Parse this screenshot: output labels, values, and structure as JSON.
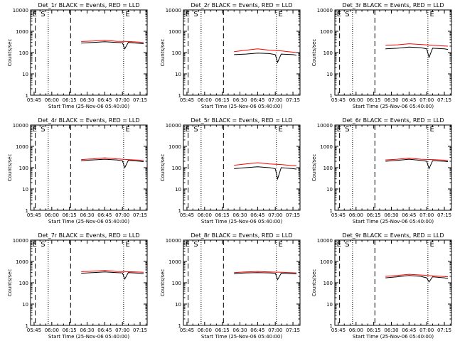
{
  "chart_data": [
    {
      "type": "line",
      "title": "Det_1r  BLACK = Events, RED = LLD",
      "xlabel": "Start Time (25-Nov-06 05:40:00)",
      "ylabel": "Counts/sec",
      "x_ticks": [
        "05:45",
        "06:00",
        "06:15",
        "06:30",
        "06:45",
        "07:00",
        "07:15"
      ],
      "y_ticks": [
        "1",
        "10",
        "100",
        "1000",
        "10000"
      ],
      "ylim": [
        1,
        10000
      ],
      "yscale": "log",
      "markers": [
        "E",
        "S",
        "E"
      ],
      "series": [
        {
          "name": "Events",
          "color": "#000000",
          "x": [
            "06:25",
            "06:35",
            "06:45",
            "06:55",
            "07:00",
            "07:02",
            "07:05",
            "07:15",
            "07:18"
          ],
          "y": [
            280,
            300,
            320,
            300,
            290,
            150,
            300,
            270,
            260
          ]
        },
        {
          "name": "LLD",
          "color": "#ff0000",
          "x": [
            "06:25",
            "06:35",
            "06:45",
            "06:55",
            "07:05",
            "07:18"
          ],
          "y": [
            330,
            350,
            380,
            340,
            330,
            300
          ]
        }
      ]
    },
    {
      "type": "line",
      "title": "Det_2r  BLACK = Events, RED = LLD",
      "xlabel": "Start Time (25-Nov-06 05:40:00)",
      "ylabel": "Counts/sec",
      "x_ticks": [
        "05:45",
        "06:00",
        "06:15",
        "06:30",
        "06:45",
        "07:00",
        "07:15"
      ],
      "y_ticks": [
        "1",
        "10",
        "100",
        "1000",
        "10000"
      ],
      "ylim": [
        1,
        10000
      ],
      "yscale": "log",
      "markers": [
        "E",
        "S",
        "E"
      ],
      "series": [
        {
          "name": "Events",
          "color": "#000000",
          "x": [
            "06:25",
            "06:35",
            "06:45",
            "06:55",
            "07:00",
            "07:02",
            "07:05",
            "07:15",
            "07:18"
          ],
          "y": [
            80,
            85,
            95,
            90,
            80,
            35,
            85,
            80,
            75
          ]
        },
        {
          "name": "LLD",
          "color": "#ff0000",
          "x": [
            "06:25",
            "06:35",
            "06:45",
            "06:55",
            "07:05",
            "07:18"
          ],
          "y": [
            110,
            130,
            150,
            130,
            120,
            100
          ]
        }
      ]
    },
    {
      "type": "line",
      "title": "Det_3r  BLACK = Events, RED = LLD",
      "xlabel": "Start Time (25-Nov-06 05:40:00)",
      "ylabel": "Counts/sec",
      "x_ticks": [
        "05:45",
        "06:00",
        "06:15",
        "06:30",
        "06:45",
        "07:00",
        "07:15"
      ],
      "y_ticks": [
        "1",
        "10",
        "100",
        "1000",
        "10000"
      ],
      "ylim": [
        1,
        10000
      ],
      "yscale": "log",
      "markers": [
        "E",
        "S",
        "E"
      ],
      "series": [
        {
          "name": "Events",
          "color": "#000000",
          "x": [
            "06:25",
            "06:35",
            "06:45",
            "06:55",
            "07:00",
            "07:02",
            "07:05",
            "07:15",
            "07:18"
          ],
          "y": [
            150,
            160,
            180,
            170,
            150,
            60,
            160,
            150,
            140
          ]
        },
        {
          "name": "LLD",
          "color": "#ff0000",
          "x": [
            "06:25",
            "06:35",
            "06:45",
            "06:55",
            "07:05",
            "07:18"
          ],
          "y": [
            220,
            230,
            260,
            240,
            220,
            200
          ]
        }
      ]
    },
    {
      "type": "line",
      "title": "Det_4r  BLACK = Events, RED = LLD",
      "xlabel": "Start Time (25-Nov-06 05:40:00)",
      "ylabel": "Counts/sec",
      "x_ticks": [
        "05:45",
        "06:00",
        "06:15",
        "06:30",
        "06:45",
        "07:00",
        "07:15"
      ],
      "y_ticks": [
        "1",
        "10",
        "100",
        "1000",
        "10000"
      ],
      "ylim": [
        1,
        10000
      ],
      "yscale": "log",
      "markers": [
        "E",
        "S",
        "E"
      ],
      "series": [
        {
          "name": "Events",
          "color": "#000000",
          "x": [
            "06:25",
            "06:35",
            "06:45",
            "06:55",
            "07:00",
            "07:02",
            "07:05",
            "07:15",
            "07:18"
          ],
          "y": [
            210,
            230,
            250,
            230,
            210,
            100,
            220,
            200,
            190
          ]
        },
        {
          "name": "LLD",
          "color": "#ff0000",
          "x": [
            "06:25",
            "06:35",
            "06:45",
            "06:55",
            "07:05",
            "07:18"
          ],
          "y": [
            240,
            260,
            290,
            260,
            240,
            220
          ]
        }
      ]
    },
    {
      "type": "line",
      "title": "Det_5r  BLACK = Events, RED = LLD",
      "xlabel": "Start Time (25-Nov-06 05:40:00)",
      "ylabel": "Counts/sec",
      "x_ticks": [
        "05:45",
        "06:00",
        "06:15",
        "06:30",
        "06:45",
        "07:00",
        "07:15"
      ],
      "y_ticks": [
        "1",
        "10",
        "100",
        "1000",
        "10000"
      ],
      "ylim": [
        1,
        10000
      ],
      "yscale": "log",
      "markers": [
        "E",
        "S",
        "E"
      ],
      "series": [
        {
          "name": "Events",
          "color": "#000000",
          "x": [
            "06:25",
            "06:35",
            "06:45",
            "06:55",
            "07:00",
            "07:02",
            "07:05",
            "07:15",
            "07:18"
          ],
          "y": [
            90,
            100,
            110,
            100,
            90,
            30,
            100,
            90,
            85
          ]
        },
        {
          "name": "LLD",
          "color": "#ff0000",
          "x": [
            "06:25",
            "06:35",
            "06:45",
            "06:55",
            "07:05",
            "07:18"
          ],
          "y": [
            130,
            150,
            170,
            150,
            140,
            120
          ]
        }
      ]
    },
    {
      "type": "line",
      "title": "Det_6r  BLACK = Events, RED = LLD",
      "xlabel": "Start Time (25-Nov-06 05:40:00)",
      "ylabel": "Counts/sec",
      "x_ticks": [
        "05:45",
        "06:00",
        "06:15",
        "06:30",
        "06:45",
        "07:00",
        "07:15"
      ],
      "y_ticks": [
        "1",
        "10",
        "100",
        "1000",
        "10000"
      ],
      "ylim": [
        1,
        10000
      ],
      "yscale": "log",
      "markers": [
        "E",
        "S",
        "E"
      ],
      "series": [
        {
          "name": "Events",
          "color": "#000000",
          "x": [
            "06:25",
            "06:35",
            "06:45",
            "06:55",
            "07:00",
            "07:02",
            "07:05",
            "07:15",
            "07:18"
          ],
          "y": [
            200,
            220,
            250,
            220,
            200,
            90,
            210,
            200,
            190
          ]
        },
        {
          "name": "LLD",
          "color": "#ff0000",
          "x": [
            "06:25",
            "06:35",
            "06:45",
            "06:55",
            "07:05",
            "07:18"
          ],
          "y": [
            230,
            250,
            280,
            250,
            240,
            220
          ]
        }
      ]
    },
    {
      "type": "line",
      "title": "Det_7r  BLACK = Events, RED = LLD",
      "xlabel": "Start Time (25-Nov-06 05:40:00)",
      "ylabel": "Counts/sec",
      "x_ticks": [
        "05:45",
        "06:00",
        "06:15",
        "06:30",
        "06:45",
        "07:00",
        "07:15"
      ],
      "y_ticks": [
        "1",
        "10",
        "100",
        "1000",
        "10000"
      ],
      "ylim": [
        1,
        10000
      ],
      "yscale": "log",
      "markers": [
        "E",
        "S",
        "E"
      ],
      "series": [
        {
          "name": "Events",
          "color": "#000000",
          "x": [
            "06:25",
            "06:35",
            "06:45",
            "06:55",
            "07:00",
            "07:02",
            "07:05",
            "07:15",
            "07:18"
          ],
          "y": [
            280,
            300,
            320,
            300,
            290,
            150,
            300,
            280,
            270
          ]
        },
        {
          "name": "LLD",
          "color": "#ff0000",
          "x": [
            "06:25",
            "06:35",
            "06:45",
            "06:55",
            "07:05",
            "07:18"
          ],
          "y": [
            330,
            350,
            380,
            340,
            330,
            310
          ]
        }
      ]
    },
    {
      "type": "line",
      "title": "Det_8r  BLACK = Events, RED = LLD",
      "xlabel": "Start Time (25-Nov-06 05:40:00)",
      "ylabel": "Counts/sec",
      "x_ticks": [
        "05:45",
        "06:00",
        "06:15",
        "06:30",
        "06:45",
        "07:00",
        "07:15"
      ],
      "y_ticks": [
        "1",
        "10",
        "100",
        "1000",
        "10000"
      ],
      "ylim": [
        1,
        10000
      ],
      "yscale": "log",
      "markers": [
        "E",
        "S",
        "E"
      ],
      "series": [
        {
          "name": "Events",
          "color": "#000000",
          "x": [
            "06:25",
            "06:35",
            "06:45",
            "06:55",
            "07:00",
            "07:02",
            "07:05",
            "07:15",
            "07:18"
          ],
          "y": [
            270,
            290,
            300,
            290,
            280,
            140,
            280,
            270,
            260
          ]
        },
        {
          "name": "LLD",
          "color": "#ff0000",
          "x": [
            "06:25",
            "06:35",
            "06:45",
            "06:55",
            "07:05",
            "07:18"
          ],
          "y": [
            300,
            320,
            340,
            320,
            310,
            290
          ]
        }
      ]
    },
    {
      "type": "line",
      "title": "Det_9r  BLACK = Events, RED = LLD",
      "xlabel": "Start Time (25-Nov-06 05:40:00)",
      "ylabel": "Counts/sec",
      "x_ticks": [
        "05:45",
        "06:00",
        "06:15",
        "06:30",
        "06:45",
        "07:00",
        "07:15"
      ],
      "y_ticks": [
        "1",
        "10",
        "100",
        "1000",
        "10000"
      ],
      "ylim": [
        1,
        10000
      ],
      "yscale": "log",
      "markers": [
        "E",
        "S",
        "E"
      ],
      "series": [
        {
          "name": "Events",
          "color": "#000000",
          "x": [
            "06:25",
            "06:35",
            "06:45",
            "06:55",
            "07:00",
            "07:02",
            "07:05",
            "07:15",
            "07:18"
          ],
          "y": [
            170,
            190,
            220,
            200,
            170,
            110,
            190,
            170,
            160
          ]
        },
        {
          "name": "LLD",
          "color": "#ff0000",
          "x": [
            "06:25",
            "06:35",
            "06:45",
            "06:55",
            "07:05",
            "07:18"
          ],
          "y": [
            200,
            220,
            250,
            230,
            210,
            190
          ]
        }
      ]
    }
  ]
}
